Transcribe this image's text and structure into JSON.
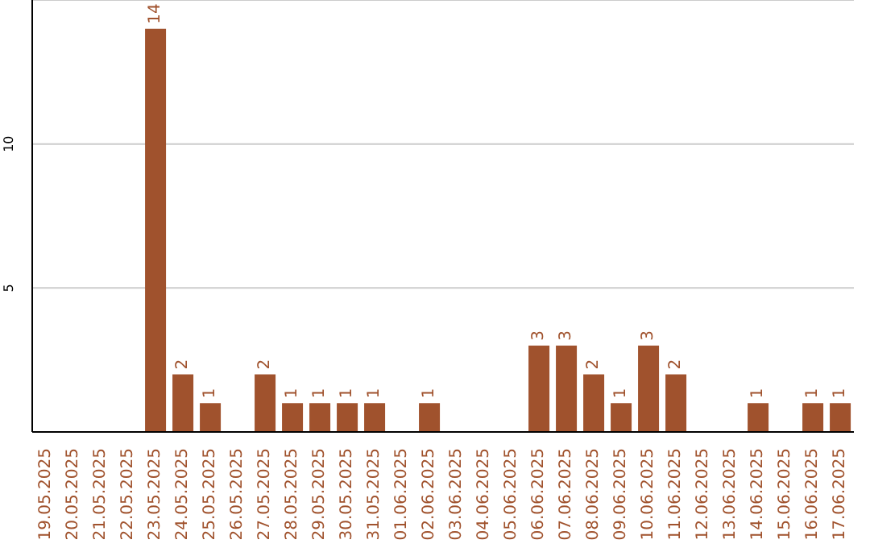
{
  "chart_data": {
    "type": "bar",
    "categories": [
      "19.05.2025",
      "20.05.2025",
      "21.05.2025",
      "22.05.2025",
      "23.05.2025",
      "24.05.2025",
      "25.05.2025",
      "26.05.2025",
      "27.05.2025",
      "28.05.2025",
      "29.05.2025",
      "30.05.2025",
      "31.05.2025",
      "01.06.2025",
      "02.06.2025",
      "03.06.2025",
      "04.06.2025",
      "05.06.2025",
      "06.06.2025",
      "07.06.2025",
      "08.06.2025",
      "09.06.2025",
      "10.06.2025",
      "11.06.2025",
      "12.06.2025",
      "13.06.2025",
      "14.06.2025",
      "15.06.2025",
      "16.06.2025",
      "17.06.2025"
    ],
    "values": [
      0,
      0,
      0,
      0,
      14,
      2,
      1,
      0,
      2,
      1,
      1,
      1,
      1,
      0,
      1,
      0,
      0,
      0,
      3,
      3,
      2,
      1,
      3,
      2,
      0,
      0,
      1,
      0,
      1,
      1
    ],
    "value_labels": [
      null,
      null,
      null,
      null,
      "14",
      "2",
      "1",
      null,
      "2",
      "1",
      "1",
      "1",
      "1",
      null,
      "1",
      null,
      null,
      null,
      "3",
      "3",
      "2",
      "1",
      "3",
      "2",
      null,
      null,
      "1",
      null,
      "1",
      "1"
    ],
    "color": "#a0522d",
    "ylim": [
      0,
      15
    ],
    "yticks": [
      5,
      10
    ],
    "grid": "y"
  }
}
